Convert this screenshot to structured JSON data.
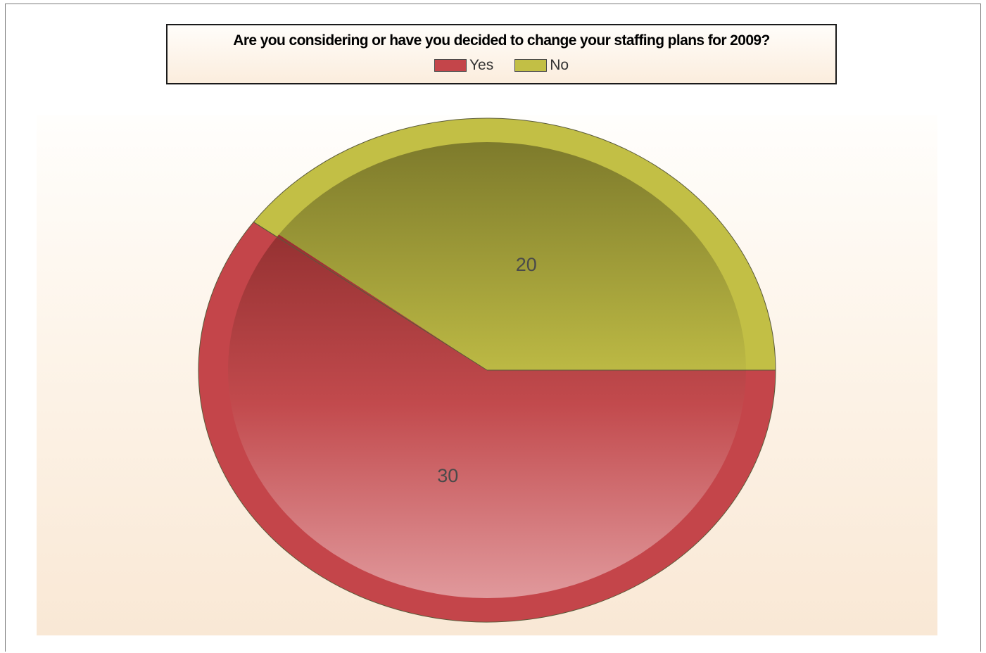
{
  "chart_data": {
    "type": "pie",
    "title": "Are you considering or have you decided to change your staffing plans for 2009?",
    "categories": [
      "Yes",
      "No"
    ],
    "values": [
      30,
      20
    ],
    "data_labels": [
      "30",
      "20"
    ],
    "colors": [
      "#c4454a",
      "#c2bf45"
    ],
    "legend": {
      "placement": "top",
      "entries": [
        "Yes",
        "No"
      ]
    }
  }
}
